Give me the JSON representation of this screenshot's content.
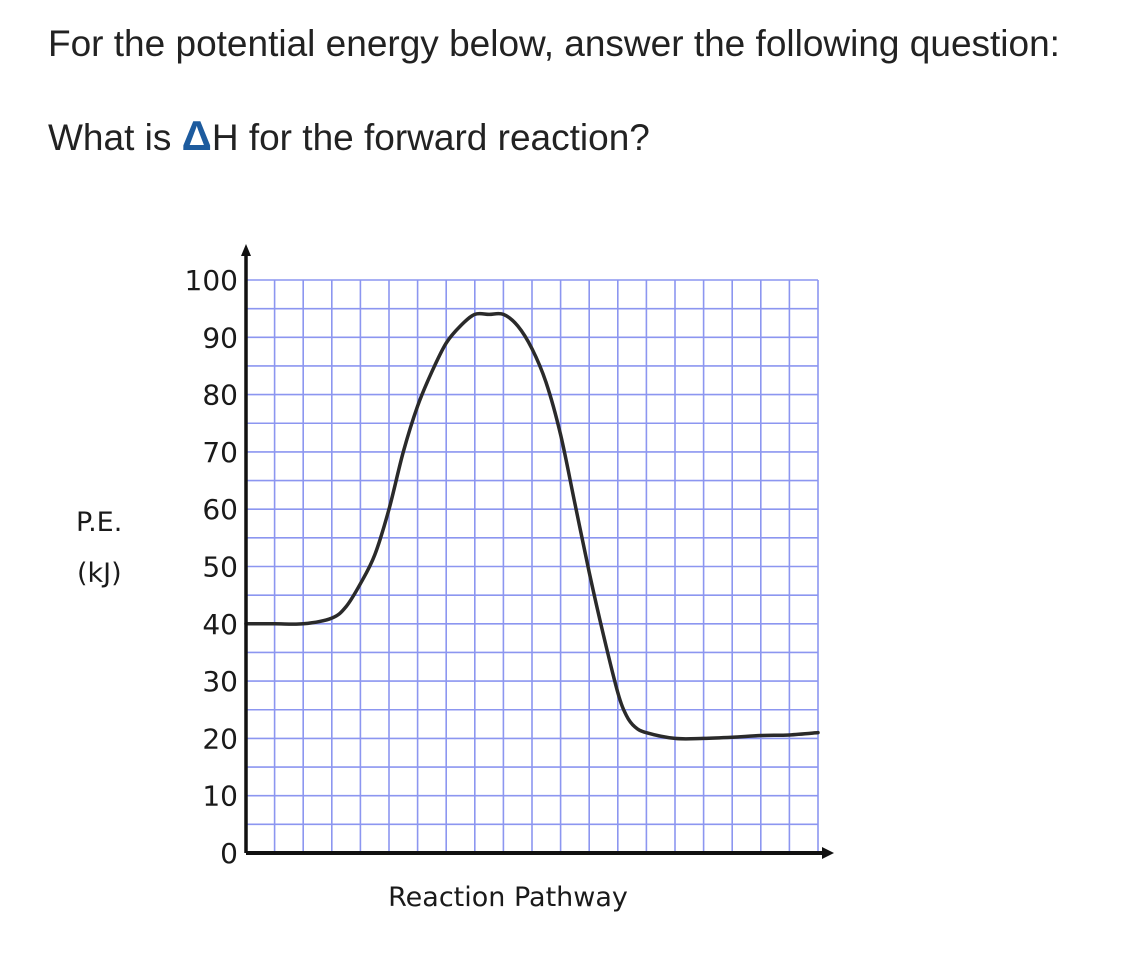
{
  "question": {
    "line1": "For the potential energy below, answer the following question:",
    "line2_prefix": "What is ",
    "delta_symbol": "Δ",
    "line2_suffix": "H for the forward reaction?"
  },
  "chart_data": {
    "type": "line",
    "title": "",
    "xlabel": "Reaction Pathway",
    "ylabel_line1": "P.E.",
    "ylabel_line2": "(kJ)",
    "ylim": [
      0,
      100
    ],
    "yticks": [
      "100",
      "90",
      "80",
      "70",
      "60",
      "50",
      "40",
      "30",
      "20",
      "10",
      "0"
    ],
    "xlim": [
      0,
      20
    ],
    "grid": true,
    "colors": {
      "grid": "#8c96f0",
      "curve": "#2a2a2a",
      "axis": "#111111"
    },
    "series": [
      {
        "x": [
          0,
          1,
          2,
          3,
          3.5,
          4,
          4.5,
          5,
          5.5,
          6,
          6.5,
          7,
          7.5,
          8,
          8.5,
          9,
          9.5,
          10,
          10.5,
          11,
          11.5,
          12,
          12.5,
          13,
          13.3,
          13.6,
          14,
          15,
          16,
          17,
          18,
          19,
          20
        ],
        "y": [
          40,
          40,
          40,
          41,
          43,
          47,
          52,
          60,
          70,
          78,
          84,
          89,
          92,
          94,
          94,
          94,
          92,
          88,
          82,
          73,
          61,
          49,
          38,
          28,
          24,
          22,
          21,
          20,
          20,
          20.2,
          20.5,
          20.6,
          21
        ]
      }
    ]
  }
}
